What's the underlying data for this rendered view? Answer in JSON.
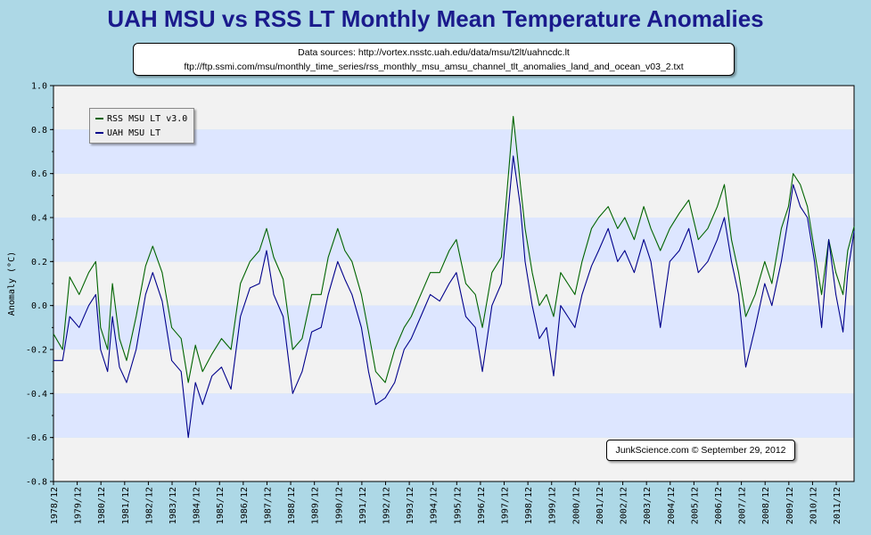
{
  "chart_data": {
    "type": "line",
    "title": "UAH MSU vs RSS LT Monthly Mean Temperature Anomalies",
    "sources": [
      "Data sources: http://vortex.nsstc.uah.edu/data/msu/t2lt/uahncdc.lt",
      "ftp://ftp.ssmi.com/msu/monthly_time_series/rss_monthly_msu_amsu_channel_tlt_anomalies_land_and_ocean_v03_2.txt"
    ],
    "credit": "JunkScience.com © September 29, 2012",
    "ylabel": "Anomaly (°C)",
    "xlabel": "",
    "ylim": [
      -0.8,
      1.0
    ],
    "yticks": [
      "1.0",
      "0.8",
      "0.6",
      "0.4",
      "0.2",
      "0.0",
      "-0.2",
      "-0.4",
      "-0.6",
      "-0.8"
    ],
    "ytick_values": [
      1.0,
      0.8,
      0.6,
      0.4,
      0.2,
      0.0,
      -0.2,
      -0.4,
      -0.6,
      -0.8
    ],
    "xlim": [
      1978.917,
      2012.667
    ],
    "xticks": [
      "1978/12",
      "1979/12",
      "1980/12",
      "1981/12",
      "1982/12",
      "1983/12",
      "1984/12",
      "1985/12",
      "1986/12",
      "1987/12",
      "1988/12",
      "1989/12",
      "1990/12",
      "1991/12",
      "1992/12",
      "1993/12",
      "1994/12",
      "1995/12",
      "1996/12",
      "1997/12",
      "1998/12",
      "1999/12",
      "2000/12",
      "2001/12",
      "2002/12",
      "2003/12",
      "2004/12",
      "2005/12",
      "2006/12",
      "2007/12",
      "2008/12",
      "2009/12",
      "2010/12",
      "2011/12"
    ],
    "legend": {
      "position": "top-left"
    },
    "series": [
      {
        "name": "RSS MSU LT v3.0",
        "color": "#006400",
        "points": [
          [
            1978.92,
            -0.13
          ],
          [
            1979.3,
            -0.2
          ],
          [
            1979.6,
            0.13
          ],
          [
            1980.0,
            0.05
          ],
          [
            1980.4,
            0.15
          ],
          [
            1980.7,
            0.2
          ],
          [
            1980.9,
            -0.1
          ],
          [
            1981.2,
            -0.2
          ],
          [
            1981.4,
            0.1
          ],
          [
            1981.7,
            -0.15
          ],
          [
            1982.0,
            -0.25
          ],
          [
            1982.4,
            -0.05
          ],
          [
            1982.8,
            0.18
          ],
          [
            1983.1,
            0.27
          ],
          [
            1983.5,
            0.15
          ],
          [
            1983.9,
            -0.1
          ],
          [
            1984.3,
            -0.15
          ],
          [
            1984.6,
            -0.35
          ],
          [
            1984.9,
            -0.18
          ],
          [
            1985.2,
            -0.3
          ],
          [
            1985.6,
            -0.22
          ],
          [
            1986.0,
            -0.15
          ],
          [
            1986.4,
            -0.2
          ],
          [
            1986.8,
            0.1
          ],
          [
            1987.2,
            0.2
          ],
          [
            1987.6,
            0.25
          ],
          [
            1987.9,
            0.35
          ],
          [
            1988.2,
            0.22
          ],
          [
            1988.6,
            0.12
          ],
          [
            1989.0,
            -0.2
          ],
          [
            1989.4,
            -0.15
          ],
          [
            1989.8,
            0.05
          ],
          [
            1990.2,
            0.05
          ],
          [
            1990.5,
            0.22
          ],
          [
            1990.9,
            0.35
          ],
          [
            1991.2,
            0.25
          ],
          [
            1991.5,
            0.2
          ],
          [
            1991.9,
            0.05
          ],
          [
            1992.2,
            -0.12
          ],
          [
            1992.5,
            -0.3
          ],
          [
            1992.9,
            -0.35
          ],
          [
            1993.3,
            -0.2
          ],
          [
            1993.7,
            -0.1
          ],
          [
            1994.0,
            -0.05
          ],
          [
            1994.4,
            0.05
          ],
          [
            1994.8,
            0.15
          ],
          [
            1995.2,
            0.15
          ],
          [
            1995.6,
            0.25
          ],
          [
            1995.9,
            0.3
          ],
          [
            1996.3,
            0.1
          ],
          [
            1996.7,
            0.05
          ],
          [
            1997.0,
            -0.1
          ],
          [
            1997.4,
            0.15
          ],
          [
            1997.8,
            0.22
          ],
          [
            1998.1,
            0.6
          ],
          [
            1998.3,
            0.86
          ],
          [
            1998.6,
            0.55
          ],
          [
            1998.8,
            0.35
          ],
          [
            1999.1,
            0.15
          ],
          [
            1999.4,
            0.0
          ],
          [
            1999.7,
            0.05
          ],
          [
            2000.0,
            -0.05
          ],
          [
            2000.3,
            0.15
          ],
          [
            2000.6,
            0.1
          ],
          [
            2000.9,
            0.05
          ],
          [
            2001.2,
            0.2
          ],
          [
            2001.6,
            0.35
          ],
          [
            2001.9,
            0.4
          ],
          [
            2002.3,
            0.45
          ],
          [
            2002.7,
            0.35
          ],
          [
            2003.0,
            0.4
          ],
          [
            2003.4,
            0.3
          ],
          [
            2003.8,
            0.45
          ],
          [
            2004.1,
            0.35
          ],
          [
            2004.5,
            0.25
          ],
          [
            2004.9,
            0.35
          ],
          [
            2005.3,
            0.42
          ],
          [
            2005.7,
            0.48
          ],
          [
            2006.1,
            0.3
          ],
          [
            2006.5,
            0.35
          ],
          [
            2006.9,
            0.45
          ],
          [
            2007.2,
            0.55
          ],
          [
            2007.5,
            0.3
          ],
          [
            2007.8,
            0.15
          ],
          [
            2008.1,
            -0.05
          ],
          [
            2008.5,
            0.05
          ],
          [
            2008.9,
            0.2
          ],
          [
            2009.2,
            0.1
          ],
          [
            2009.6,
            0.35
          ],
          [
            2009.9,
            0.45
          ],
          [
            2010.1,
            0.6
          ],
          [
            2010.4,
            0.55
          ],
          [
            2010.7,
            0.45
          ],
          [
            2011.0,
            0.25
          ],
          [
            2011.3,
            0.05
          ],
          [
            2011.6,
            0.3
          ],
          [
            2011.9,
            0.15
          ],
          [
            2012.2,
            0.05
          ],
          [
            2012.4,
            0.25
          ],
          [
            2012.67,
            0.36
          ]
        ]
      },
      {
        "name": "UAH MSU LT",
        "color": "#00008b",
        "points": [
          [
            1978.92,
            -0.25
          ],
          [
            1979.3,
            -0.25
          ],
          [
            1979.6,
            -0.05
          ],
          [
            1980.0,
            -0.1
          ],
          [
            1980.4,
            0.0
          ],
          [
            1980.7,
            0.05
          ],
          [
            1980.9,
            -0.2
          ],
          [
            1981.2,
            -0.3
          ],
          [
            1981.4,
            -0.05
          ],
          [
            1981.7,
            -0.28
          ],
          [
            1982.0,
            -0.35
          ],
          [
            1982.4,
            -0.2
          ],
          [
            1982.8,
            0.05
          ],
          [
            1983.1,
            0.15
          ],
          [
            1983.5,
            0.02
          ],
          [
            1983.9,
            -0.25
          ],
          [
            1984.3,
            -0.3
          ],
          [
            1984.6,
            -0.6
          ],
          [
            1984.9,
            -0.35
          ],
          [
            1985.2,
            -0.45
          ],
          [
            1985.6,
            -0.32
          ],
          [
            1986.0,
            -0.28
          ],
          [
            1986.4,
            -0.38
          ],
          [
            1986.8,
            -0.05
          ],
          [
            1987.2,
            0.08
          ],
          [
            1987.6,
            0.1
          ],
          [
            1987.9,
            0.25
          ],
          [
            1988.2,
            0.05
          ],
          [
            1988.6,
            -0.05
          ],
          [
            1989.0,
            -0.4
          ],
          [
            1989.4,
            -0.3
          ],
          [
            1989.8,
            -0.12
          ],
          [
            1990.2,
            -0.1
          ],
          [
            1990.5,
            0.05
          ],
          [
            1990.9,
            0.2
          ],
          [
            1991.2,
            0.12
          ],
          [
            1991.5,
            0.05
          ],
          [
            1991.9,
            -0.1
          ],
          [
            1992.2,
            -0.3
          ],
          [
            1992.5,
            -0.45
          ],
          [
            1992.9,
            -0.42
          ],
          [
            1993.3,
            -0.35
          ],
          [
            1993.7,
            -0.2
          ],
          [
            1994.0,
            -0.15
          ],
          [
            1994.4,
            -0.05
          ],
          [
            1994.8,
            0.05
          ],
          [
            1995.2,
            0.02
          ],
          [
            1995.6,
            0.1
          ],
          [
            1995.9,
            0.15
          ],
          [
            1996.3,
            -0.05
          ],
          [
            1996.7,
            -0.1
          ],
          [
            1997.0,
            -0.3
          ],
          [
            1997.4,
            0.0
          ],
          [
            1997.8,
            0.1
          ],
          [
            1998.1,
            0.45
          ],
          [
            1998.3,
            0.68
          ],
          [
            1998.6,
            0.45
          ],
          [
            1998.8,
            0.2
          ],
          [
            1999.1,
            0.0
          ],
          [
            1999.4,
            -0.15
          ],
          [
            1999.7,
            -0.1
          ],
          [
            2000.0,
            -0.32
          ],
          [
            2000.3,
            0.0
          ],
          [
            2000.6,
            -0.05
          ],
          [
            2000.9,
            -0.1
          ],
          [
            2001.2,
            0.05
          ],
          [
            2001.6,
            0.18
          ],
          [
            2001.9,
            0.25
          ],
          [
            2002.3,
            0.35
          ],
          [
            2002.7,
            0.2
          ],
          [
            2003.0,
            0.25
          ],
          [
            2003.4,
            0.15
          ],
          [
            2003.8,
            0.3
          ],
          [
            2004.1,
            0.2
          ],
          [
            2004.5,
            -0.1
          ],
          [
            2004.9,
            0.2
          ],
          [
            2005.3,
            0.25
          ],
          [
            2005.7,
            0.35
          ],
          [
            2006.1,
            0.15
          ],
          [
            2006.5,
            0.2
          ],
          [
            2006.9,
            0.3
          ],
          [
            2007.2,
            0.4
          ],
          [
            2007.5,
            0.2
          ],
          [
            2007.8,
            0.05
          ],
          [
            2008.1,
            -0.28
          ],
          [
            2008.5,
            -0.1
          ],
          [
            2008.9,
            0.1
          ],
          [
            2009.2,
            0.0
          ],
          [
            2009.6,
            0.2
          ],
          [
            2009.9,
            0.4
          ],
          [
            2010.1,
            0.55
          ],
          [
            2010.4,
            0.45
          ],
          [
            2010.7,
            0.4
          ],
          [
            2011.0,
            0.2
          ],
          [
            2011.3,
            -0.1
          ],
          [
            2011.6,
            0.3
          ],
          [
            2011.9,
            0.05
          ],
          [
            2012.2,
            -0.12
          ],
          [
            2012.4,
            0.15
          ],
          [
            2012.67,
            0.34
          ]
        ]
      }
    ]
  }
}
